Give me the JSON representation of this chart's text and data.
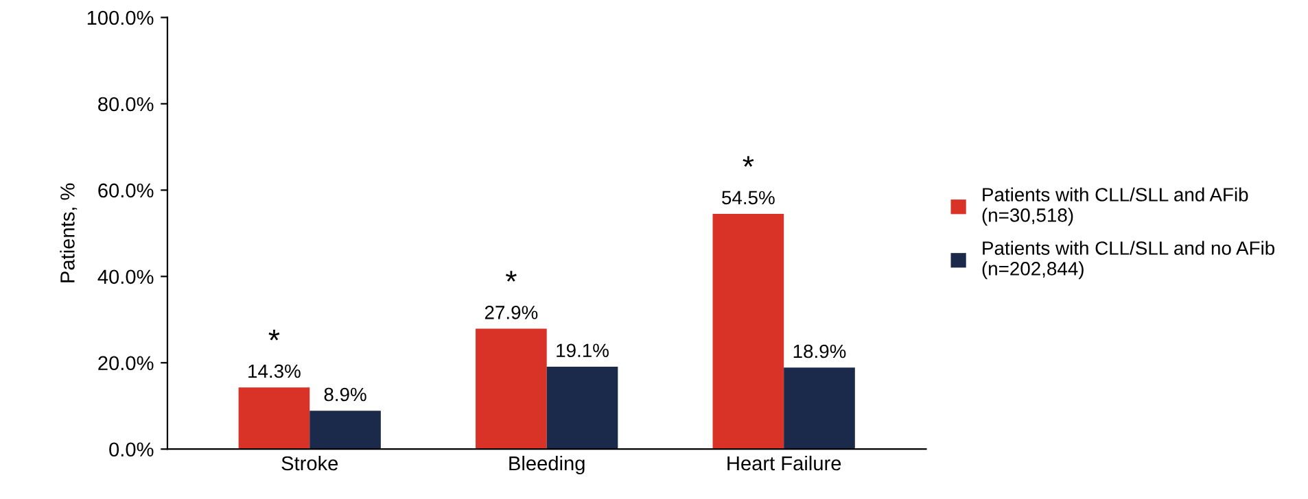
{
  "chart_data": {
    "type": "bar",
    "ylabel": "Patients, %",
    "categories": [
      "Stroke",
      "Bleeding",
      "Heart Failure"
    ],
    "series": [
      {
        "name": "Patients with CLL/SLL and AFib\n(n=30,518)",
        "color": "#d93327",
        "values": [
          14.3,
          27.9,
          54.5
        ],
        "value_labels": [
          "14.3%",
          "27.9%",
          "54.5%"
        ]
      },
      {
        "name": "Patients with CLL/SLL and no AFib\n(n=202,844)",
        "color": "#1b2a4a",
        "values": [
          8.9,
          19.1,
          18.9
        ],
        "value_labels": [
          "8.9%",
          "19.1%",
          "18.9%"
        ]
      }
    ],
    "ylim": [
      0,
      100
    ],
    "yticks": [
      {
        "value": 0,
        "label": "0.0%"
      },
      {
        "value": 20,
        "label": "20.0%"
      },
      {
        "value": 40,
        "label": "40.0%"
      },
      {
        "value": 60,
        "label": "60.0%"
      },
      {
        "value": 80,
        "label": "80.0%"
      },
      {
        "value": 100,
        "label": "100.0%"
      }
    ],
    "annotations": [
      {
        "text": "*",
        "x": "Stroke",
        "y": 14.3
      },
      {
        "text": "*",
        "x": "Bleeding",
        "y": 27.9
      },
      {
        "text": "*",
        "x": "Heart Failure",
        "y": 54.5
      }
    ],
    "grid": false,
    "legend": "right"
  }
}
